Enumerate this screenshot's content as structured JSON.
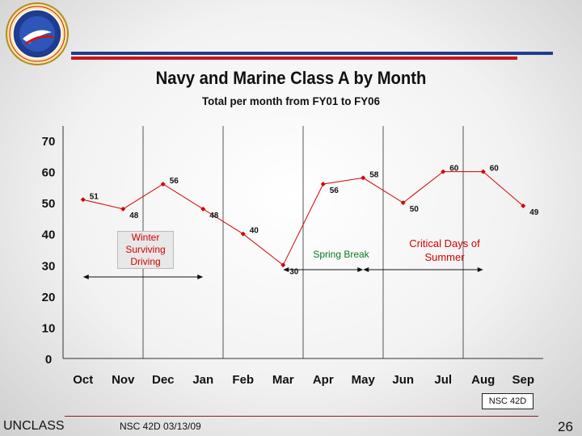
{
  "header": {
    "logo_text_top": "NAVAL SAFETY CENTER",
    "logo_text_bottom": "EST 1951",
    "colors": {
      "blue": "#1f3c8f",
      "red": "#c8161d",
      "gold": "#d9a62a"
    }
  },
  "chart_data": {
    "type": "line",
    "title": "Navy and Marine Class A by Month",
    "subtitle": "Total per month from FY01 to FY06",
    "xlabel": "",
    "ylabel": "",
    "categories": [
      "Oct",
      "Nov",
      "Dec",
      "Jan",
      "Feb",
      "Mar",
      "Apr",
      "May",
      "Jun",
      "Jul",
      "Aug",
      "Sep"
    ],
    "series": [
      {
        "values": [
          51,
          48,
          56,
          48,
          40,
          30,
          56,
          58,
          50,
          60,
          60,
          49
        ],
        "color": "#d40000"
      }
    ],
    "ylim": [
      0,
      70
    ],
    "yticks": [
      0,
      10,
      20,
      30,
      40,
      50,
      60,
      70
    ],
    "data_labels": [
      "51",
      "48",
      "56",
      "48",
      "40",
      "30",
      "56",
      "58",
      "50",
      "60",
      "60",
      "49"
    ],
    "grid": "vertical",
    "annotations": [
      {
        "text": [
          "Winter",
          "Surviving",
          "Driving"
        ],
        "color": "#d40000",
        "span": [
          "Oct",
          "Jan"
        ]
      },
      {
        "text": [
          "Spring Break"
        ],
        "color": "#0a7a1f",
        "span": [
          "Mar",
          "May"
        ]
      },
      {
        "text": [
          "Critical Days of",
          "Summer"
        ],
        "color": "#d40000",
        "span": [
          "May",
          "Aug"
        ]
      }
    ]
  },
  "footer": {
    "code_box": "NSC 42D",
    "left": "UNCLASS",
    "middle": "NSC 42D 03/13/09",
    "page": "26"
  }
}
